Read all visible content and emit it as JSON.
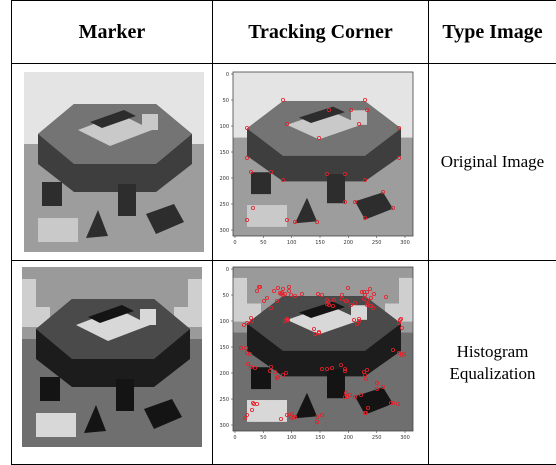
{
  "table": {
    "headers": [
      "Marker",
      "Tracking Corner",
      "Type Image"
    ],
    "rows": [
      {
        "type_label": "Original Image"
      },
      {
        "type_label": "Histogram Equalization"
      }
    ]
  },
  "plot_axes": {
    "y_ticks": [
      "0",
      "50",
      "100",
      "150",
      "200",
      "250",
      "300"
    ],
    "x_ticks": [
      "0",
      "50",
      "100",
      "150",
      "200",
      "250",
      "300"
    ]
  },
  "colors": {
    "corner_marker": "#e8202a",
    "border": "#000000"
  }
}
